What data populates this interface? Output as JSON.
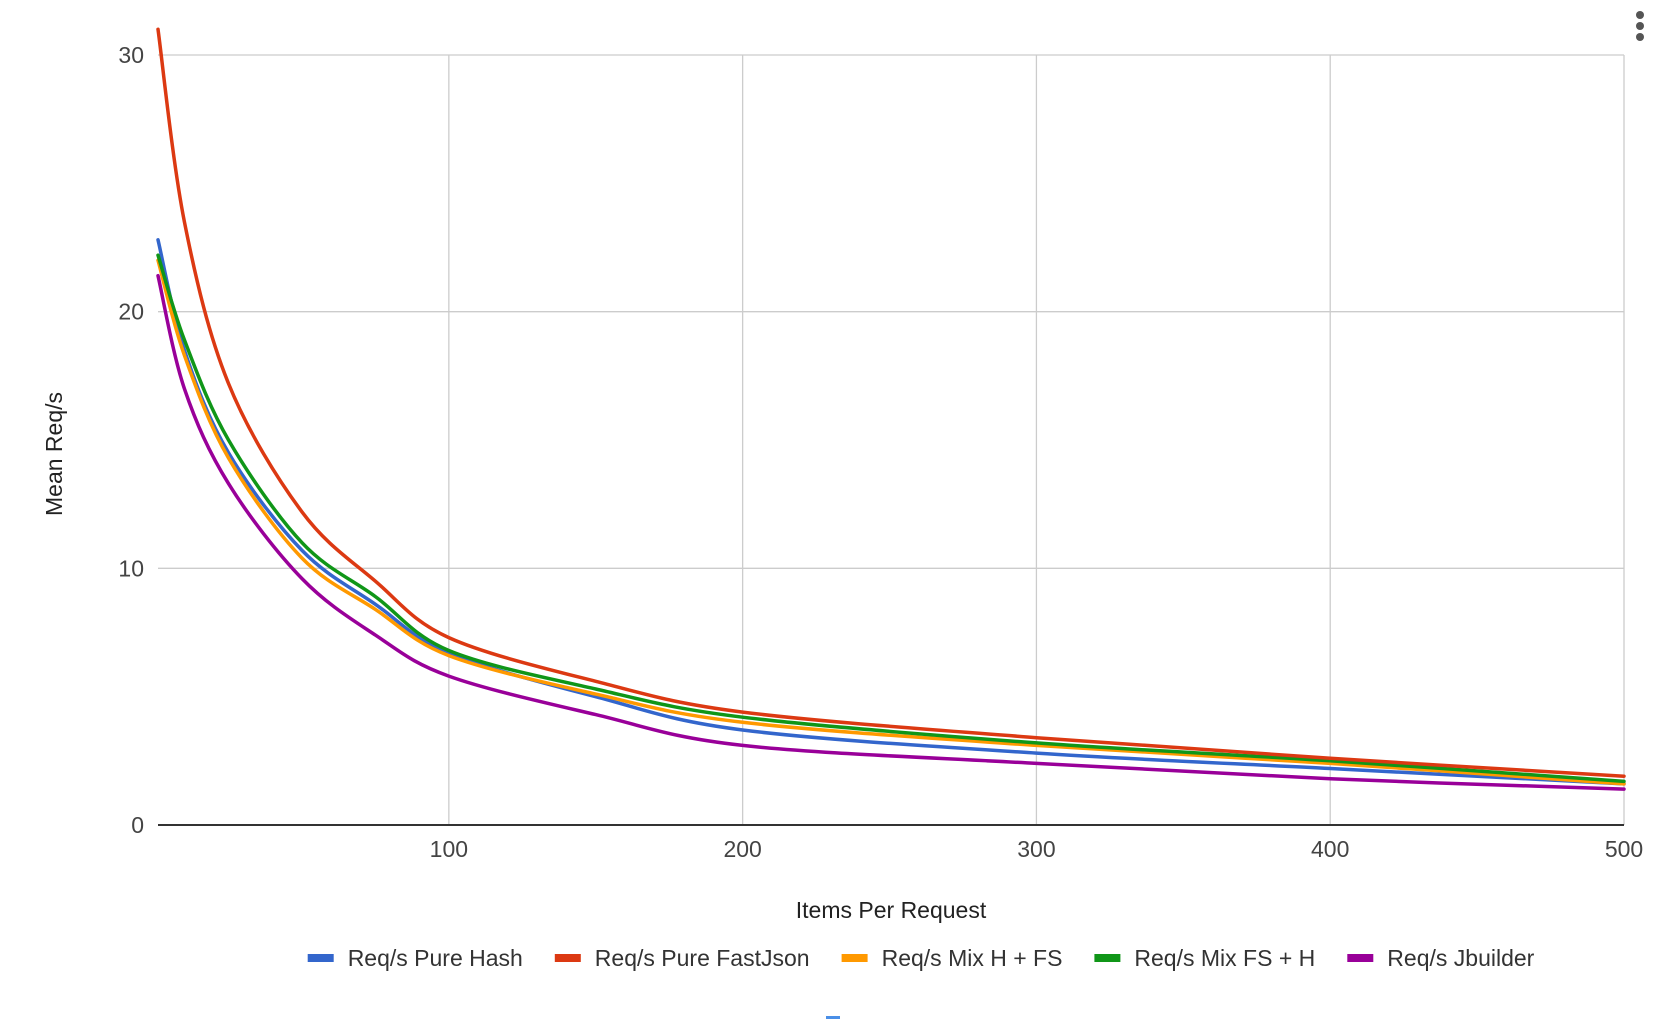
{
  "menu": {
    "icon": "more-vert-icon"
  },
  "chart_data": {
    "type": "line",
    "title": "",
    "xlabel": "Items Per Request",
    "ylabel": "Mean Req/s",
    "xlim": [
      1,
      500
    ],
    "ylim": [
      0,
      30
    ],
    "x_ticks": [
      100,
      200,
      300,
      400,
      500
    ],
    "y_ticks": [
      0,
      10,
      20,
      30
    ],
    "grid": true,
    "legend_position": "bottom",
    "x": [
      1,
      10,
      25,
      50,
      75,
      100,
      150,
      200,
      300,
      400,
      500
    ],
    "series": [
      {
        "name": "Req/s Pure Hash",
        "color": "#3366cc",
        "values": [
          22.8,
          18.5,
          14.5,
          10.7,
          8.6,
          6.7,
          5.0,
          3.7,
          2.8,
          2.2,
          1.6
        ]
      },
      {
        "name": "Req/s Pure FastJson",
        "color": "#dc3912",
        "values": [
          31.0,
          23.5,
          17.2,
          12.2,
          9.5,
          7.3,
          5.6,
          4.4,
          3.4,
          2.6,
          1.9
        ]
      },
      {
        "name": "Req/s Mix H + FS",
        "color": "#ff9900",
        "values": [
          22.0,
          18.3,
          14.3,
          10.4,
          8.4,
          6.6,
          5.1,
          4.0,
          3.1,
          2.4,
          1.6
        ]
      },
      {
        "name": "Req/s Mix FS + H",
        "color": "#109618",
        "values": [
          22.2,
          18.9,
          15.0,
          11.0,
          8.9,
          6.8,
          5.3,
          4.2,
          3.2,
          2.5,
          1.7
        ]
      },
      {
        "name": "Req/s Jbuilder",
        "color": "#990099",
        "values": [
          21.4,
          17.0,
          13.3,
          9.6,
          7.4,
          5.8,
          4.3,
          3.1,
          2.4,
          1.8,
          1.4
        ]
      }
    ]
  }
}
